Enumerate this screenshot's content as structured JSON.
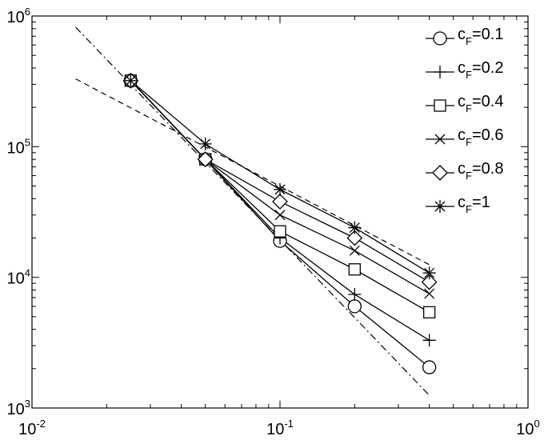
{
  "chart_data": {
    "type": "line",
    "x_scale": "log",
    "y_scale": "log",
    "xlim": [
      0.01,
      1
    ],
    "ylim": [
      1000,
      1000000
    ],
    "grid": false,
    "legend_position": "top-right",
    "x_ticks": [
      {
        "value": 0.01,
        "base": "10",
        "exp": "-2"
      },
      {
        "value": 0.1,
        "base": "10",
        "exp": "-1"
      },
      {
        "value": 1,
        "base": "10",
        "exp": "0"
      }
    ],
    "y_ticks": [
      {
        "value": 1000,
        "base": "10",
        "exp": "3"
      },
      {
        "value": 10000,
        "base": "10",
        "exp": "4"
      },
      {
        "value": 100000,
        "base": "10",
        "exp": "5"
      },
      {
        "value": 1000000,
        "base": "10",
        "exp": "6"
      }
    ],
    "x": [
      0.025,
      0.05,
      0.1,
      0.2,
      0.4
    ],
    "series": [
      {
        "legend_main": "c",
        "legend_sub": "F",
        "legend_rest": "=0.1",
        "marker": "circle",
        "values": [
          320000,
          80000,
          19000,
          6000,
          2050
        ]
      },
      {
        "legend_main": "c",
        "legend_sub": "F",
        "legend_rest": "=0.2",
        "marker": "plus",
        "values": [
          320000,
          80000,
          20000,
          7400,
          3300
        ]
      },
      {
        "legend_main": "c",
        "legend_sub": "F",
        "legend_rest": "=0.4",
        "marker": "square",
        "values": [
          320000,
          80000,
          22500,
          11500,
          5400
        ]
      },
      {
        "legend_main": "c",
        "legend_sub": "F",
        "legend_rest": "=0.6",
        "marker": "x",
        "values": [
          320000,
          80000,
          30000,
          16000,
          7500
        ]
      },
      {
        "legend_main": "c",
        "legend_sub": "F",
        "legend_rest": "=0.8",
        "marker": "diamond",
        "values": [
          320000,
          80000,
          38000,
          20000,
          9200
        ]
      },
      {
        "legend_main": "c",
        "legend_sub": "F",
        "legend_rest": "=1",
        "marker": "asterisk",
        "values": [
          320000,
          105000,
          47000,
          24000,
          10800
        ]
      }
    ],
    "reference_lines": [
      {
        "style": "dash-dot",
        "x": [
          0.015,
          0.4
        ],
        "y": [
          820000,
          1250
        ]
      },
      {
        "style": "dashed",
        "x": [
          0.015,
          0.4
        ],
        "y": [
          330000,
          12500
        ]
      }
    ]
  }
}
